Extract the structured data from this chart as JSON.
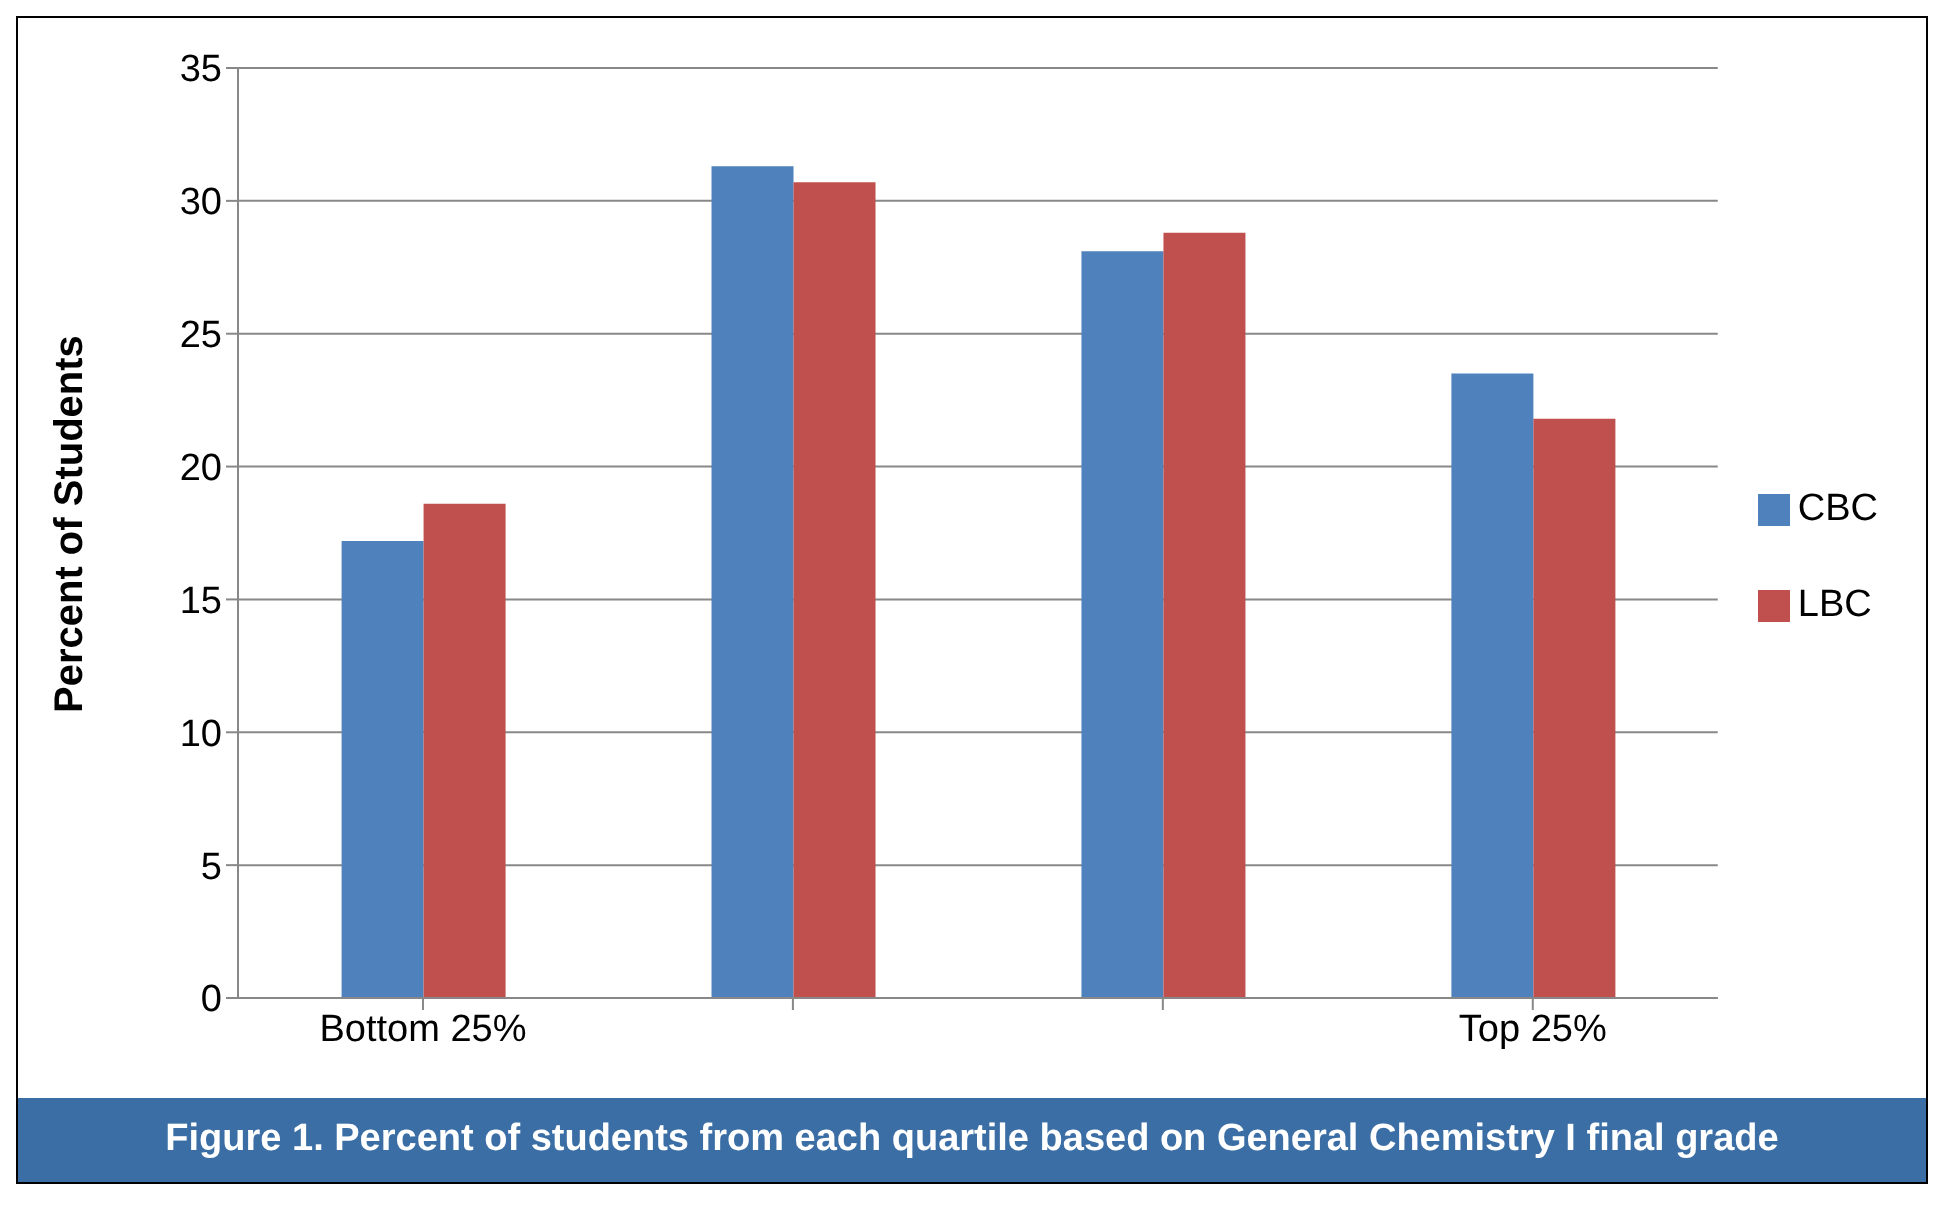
{
  "chart_data": {
    "type": "bar",
    "ylabel": "Percent of Students",
    "categories": [
      "Bottom 25%",
      null,
      null,
      "Top 25%"
    ],
    "series": [
      {
        "name": "CBC",
        "color": "#4f81bd",
        "values": [
          17.2,
          31.3,
          28.1,
          23.5
        ]
      },
      {
        "name": "LBC",
        "color": "#c0504d",
        "values": [
          18.6,
          30.7,
          28.8,
          21.8
        ]
      }
    ],
    "ylim": [
      0,
      35
    ],
    "yticks": [
      0,
      5,
      10,
      15,
      20,
      25,
      30,
      35
    ],
    "grid": "y",
    "legend": "right",
    "annotations": [
      "Figure 1.   Percent of students from each quartile based on General Chemistry I final grade"
    ]
  }
}
